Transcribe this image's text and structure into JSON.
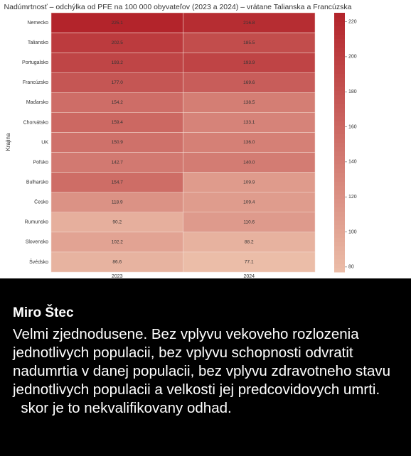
{
  "chart_data": {
    "type": "heatmap",
    "title": "Nadúmrtnosť – odchýlka od PFE na 100 000 obyvateľov (2023 a 2024) – vrátane Talianska a Francúzska",
    "ylabel": "Krajina",
    "categories": [
      "Nemecko",
      "Taliansko",
      "Portugalsko",
      "Francúzsko",
      "Maďarsko",
      "Chorvátsko",
      "UK",
      "Poľsko",
      "Bulharsko",
      "Česko",
      "Rumunsko",
      "Slovensko",
      "Švédsko"
    ],
    "series": [
      {
        "name": "2023",
        "values": [
          225.1,
          202.5,
          193.2,
          177,
          154.2,
          159.4,
          150.9,
          142.7,
          154.7,
          118.9,
          90.2,
          102.2,
          86.6
        ],
        "value_labels": [
          "225.1",
          "202.5",
          "193.2",
          "177.0",
          "154.2",
          "159.4",
          "150.9",
          "142.7",
          "154.7",
          "118.9",
          "90.2",
          "102.2",
          "86.6"
        ]
      },
      {
        "name": "2024",
        "values": [
          216.8,
          185.5,
          193.9,
          169.6,
          138.5,
          133.1,
          136,
          140,
          109.9,
          109.4,
          110.6,
          88.2,
          77.1
        ],
        "value_labels": [
          "216.8",
          "185.5",
          "193.9",
          "169.6",
          "138.5",
          "133.1",
          "136.0",
          "140.0",
          "109.9",
          "109.4",
          "110.6",
          "88.2",
          "77.1"
        ]
      }
    ],
    "colormap": [
      "#ebbda8",
      "#b3242b"
    ],
    "clim": [
      77.1,
      225.1
    ],
    "cticks": [
      80,
      100,
      120,
      140,
      160,
      180,
      200,
      220
    ]
  },
  "comment": {
    "author": "Miro Štec",
    "paragraphs": [
      "Velmi zjednodusene. Bez vplyvu vekoveho rozlozenia jednotlivych populacii, bez vplyvu schopnosti odvratit nadumrtia v danej populacii, bez vplyvu zdravotneho stavu jednotlivych populacii a velkosti jej predcovidovych umrti.",
      "  skor je to nekvalifikovany odhad."
    ]
  }
}
